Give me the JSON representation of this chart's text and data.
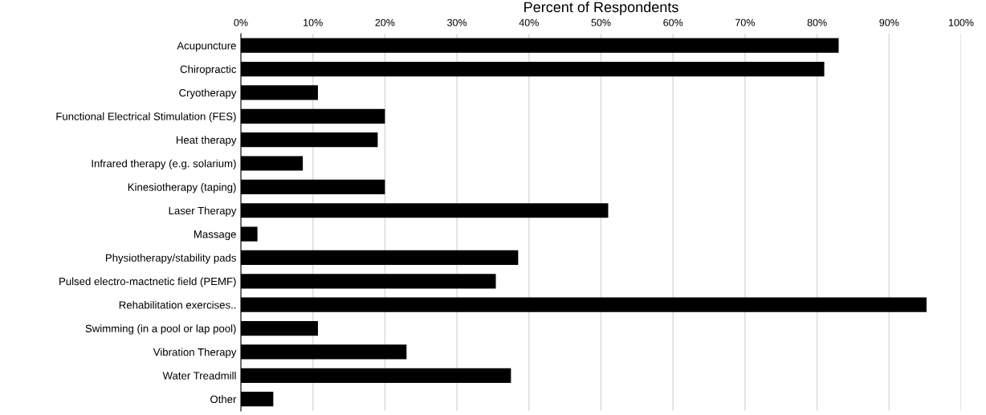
{
  "chart_data": {
    "type": "bar",
    "orientation": "horizontal",
    "xlabel": "Percent of Respondents",
    "categories": [
      "Acupuncture",
      "Chiropractic",
      "Cryotherapy",
      "Functional Electrical Stimulation (FES)",
      "Heat therapy",
      "Infrared therapy (e.g. solarium)",
      "Kinesiotherapy (taping)",
      "Laser Therapy",
      "Massage",
      "Physiotherapy/stability pads",
      "Pulsed electro-mactnetic field (PEMF)",
      "Rehabilitation exercises..",
      "Swimming (in a pool or lap pool)",
      "Vibration Therapy",
      "Water Treadmill",
      "Other"
    ],
    "values": [
      83,
      81,
      10.7,
      20,
      19,
      8.6,
      20,
      51,
      2.3,
      38.5,
      35.4,
      95.2,
      10.7,
      23,
      37.5,
      4.5
    ],
    "color": "#000000",
    "xlim": [
      0,
      100
    ],
    "xticks": [
      {
        "value": 0,
        "label": "0%"
      },
      {
        "value": 10,
        "label": "10%"
      },
      {
        "value": 20,
        "label": "20%"
      },
      {
        "value": 30,
        "label": "30%"
      },
      {
        "value": 40,
        "label": "40%"
      },
      {
        "value": 50,
        "label": "50%"
      },
      {
        "value": 60,
        "label": "60%"
      },
      {
        "value": 70,
        "label": "70%"
      },
      {
        "value": 80,
        "label": "80%"
      },
      {
        "value": 90,
        "label": "90%"
      },
      {
        "value": 100,
        "label": "100%"
      }
    ],
    "grid": "x",
    "legend": false
  }
}
